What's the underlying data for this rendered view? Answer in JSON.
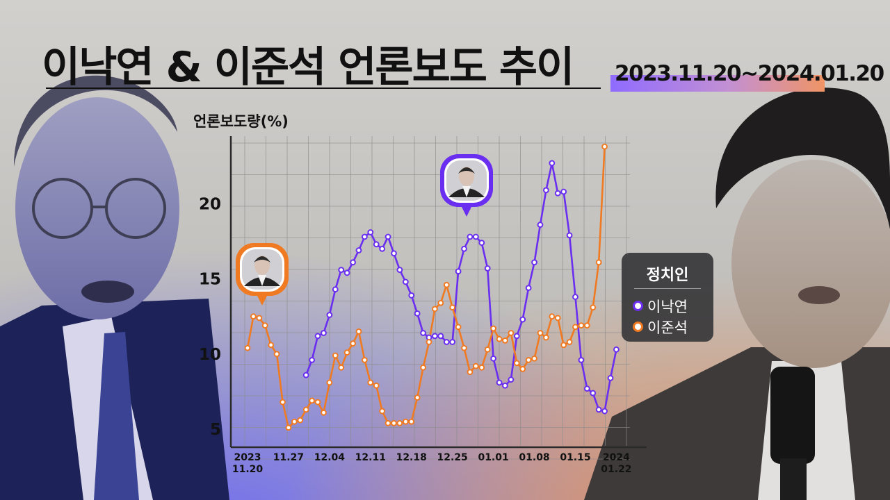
{
  "title": "이낙연 & 이준석 언론보도 추이",
  "period": "2023.11.20~2024.01.20",
  "colors": {
    "lee_nakyon": "#6a2ef0",
    "lee_junseok": "#f07a22",
    "grid": "#8d8d8d",
    "axis": "#2a2a2a"
  },
  "legend": {
    "title": "정치인",
    "items": [
      {
        "label": "이낙연",
        "color": "#6a2ef0"
      },
      {
        "label": "이준석",
        "color": "#f07a22"
      }
    ]
  },
  "chart_data": {
    "type": "line",
    "title": "이낙연 & 이준석 언론보도 추이",
    "ylabel": "언론보도량(%)",
    "xlabel": "",
    "ylim": [
      3.8,
      24.5
    ],
    "yticks": [
      5,
      10,
      15,
      20
    ],
    "x_start": 0,
    "x_end": 62,
    "xticks": [
      {
        "x": 0,
        "label": [
          "2023",
          "11.20"
        ]
      },
      {
        "x": 7,
        "label": [
          "11.27"
        ]
      },
      {
        "x": 14,
        "label": [
          "12.04"
        ]
      },
      {
        "x": 21,
        "label": [
          "12.11"
        ]
      },
      {
        "x": 28,
        "label": [
          "12.18"
        ]
      },
      {
        "x": 35,
        "label": [
          "12.25"
        ]
      },
      {
        "x": 42,
        "label": [
          "01.01"
        ]
      },
      {
        "x": 49,
        "label": [
          "01.08"
        ]
      },
      {
        "x": 56,
        "label": [
          "01.15"
        ]
      },
      {
        "x": 63,
        "label": [
          "2024",
          "01.22"
        ]
      }
    ],
    "grid": true,
    "legend_position": "right",
    "series": [
      {
        "name": "이낙연",
        "start_x": 10,
        "values": [
          8.6,
          9.6,
          11.2,
          11.4,
          12.6,
          14.3,
          15.6,
          15.4,
          16.1,
          16.9,
          17.8,
          18.1,
          17.3,
          17.0,
          17.8,
          16.7,
          15.6,
          14.8,
          13.9,
          12.7,
          11.4,
          11.1,
          11.2,
          11.2,
          10.8,
          10.8,
          15.5,
          17.0,
          17.8,
          17.8,
          17.4,
          15.7,
          9.7,
          8.1,
          7.9,
          8.3,
          11.2,
          12.3,
          14.4,
          16.1,
          18.6,
          20.9,
          22.7,
          20.7,
          20.8,
          17.9,
          13.8,
          9.6,
          7.7,
          7.4,
          6.3,
          6.2,
          8.4,
          10.3
        ]
      },
      {
        "name": "이준석",
        "start_x": 0,
        "values": [
          10.4,
          12.5,
          12.4,
          11.9,
          10.6,
          10.0,
          6.8,
          5.1,
          5.5,
          5.6,
          6.3,
          6.9,
          6.8,
          6.1,
          8.1,
          9.9,
          9.1,
          10.1,
          10.7,
          11.5,
          9.6,
          8.1,
          7.9,
          6.2,
          5.4,
          5.4,
          5.4,
          5.5,
          5.5,
          7.1,
          9.1,
          10.8,
          13.0,
          13.4,
          14.6,
          13.1,
          11.8,
          10.4,
          8.8,
          9.2,
          9.1,
          10.3,
          11.7,
          11.0,
          10.9,
          11.4,
          9.4,
          9.0,
          9.6,
          9.7,
          11.4,
          11.1,
          12.5,
          12.4,
          10.6,
          10.8,
          11.8,
          11.9,
          11.9,
          13.1,
          16.1,
          23.8
        ]
      }
    ]
  }
}
